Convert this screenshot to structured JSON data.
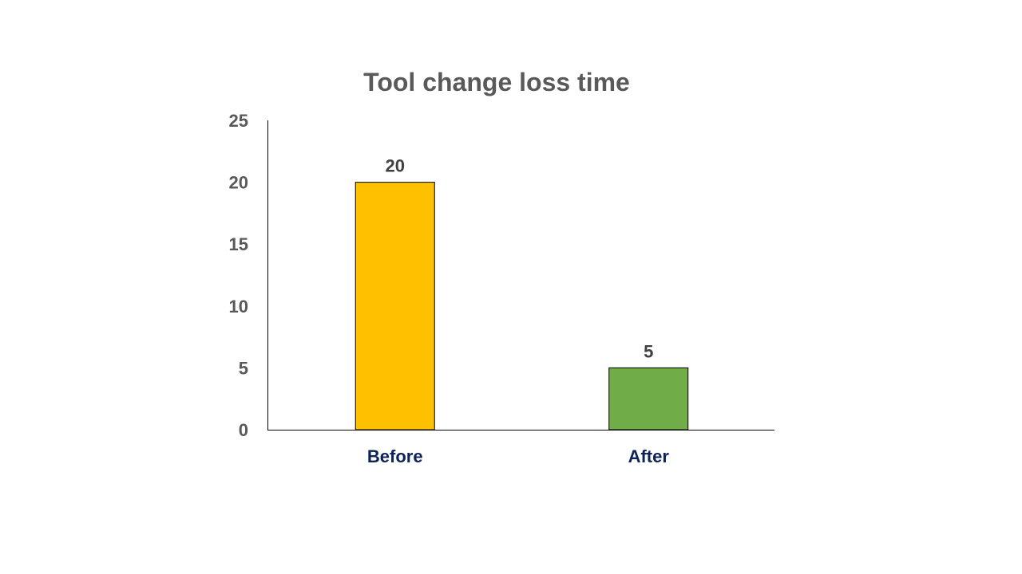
{
  "chart_data": {
    "type": "bar",
    "title": "Tool change loss time",
    "categories": [
      "Before",
      "After"
    ],
    "values": [
      20,
      5
    ],
    "data_labels": [
      "20",
      "5"
    ],
    "colors": [
      "#FFC000",
      "#70AD47"
    ],
    "xlabel": "",
    "ylabel": "",
    "ylim": [
      0,
      25
    ],
    "yticks": [
      "0",
      "5",
      "10",
      "15",
      "20",
      "25"
    ],
    "grid": false,
    "legend": "none"
  }
}
